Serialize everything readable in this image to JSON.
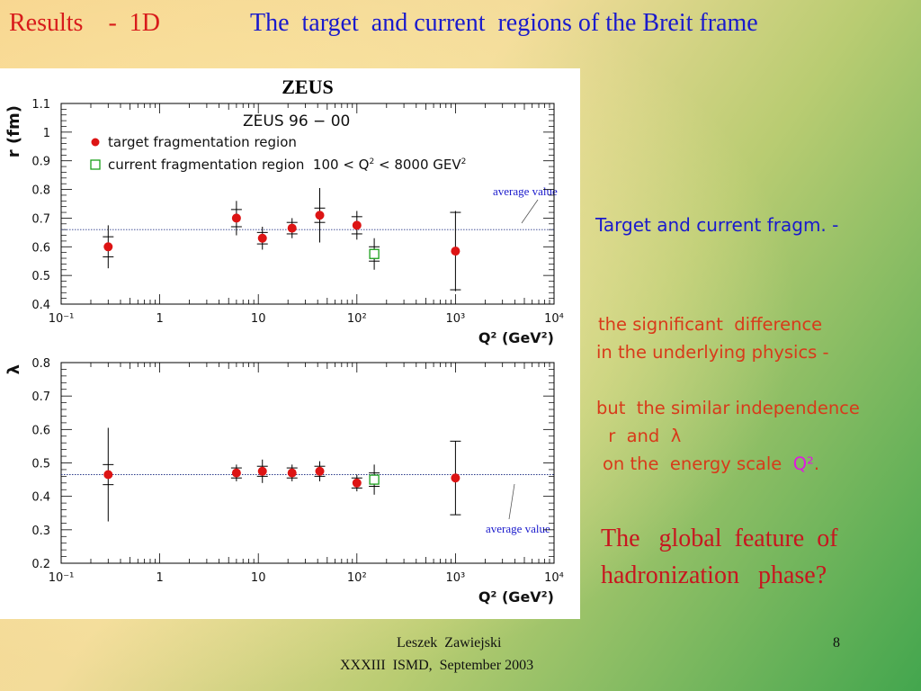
{
  "slide": {
    "title_left": "Results    -  1D",
    "title_right": "The  target  and current  regions of the Breit frame"
  },
  "figure": {
    "header": "ZEUS",
    "inner_label": "ZEUS 96 − 00",
    "legend_target": "target fragmentation region",
    "legend_current_pre": "current fragmentation region  100 < Q",
    "legend_current_post": " < 8000 GEV",
    "average_label": "average value"
  },
  "chart_data": [
    {
      "type": "scatter",
      "ylabel": "r (fm)",
      "xlabel": "Q² (GeV²)",
      "xscale": "log",
      "xlim": [
        0.1,
        10000
      ],
      "ylim": [
        0.4,
        1.1
      ],
      "yticks": [
        "0.4",
        "0.5",
        "0.6",
        "0.7",
        "0.8",
        "0.9",
        "1",
        "1.1"
      ],
      "xticks": [
        "10⁻¹",
        "1",
        "10",
        "10²",
        "10³",
        "10⁴"
      ],
      "average": 0.66,
      "series": [
        {
          "name": "target fragmentation region",
          "marker": "filled-circle",
          "color": "#dd1414",
          "points": [
            {
              "x": 0.3,
              "y": 0.6,
              "err": 0.075,
              "err_stat": 0.035
            },
            {
              "x": 6,
              "y": 0.7,
              "err": 0.06,
              "err_stat": 0.03
            },
            {
              "x": 11,
              "y": 0.63,
              "err": 0.04,
              "err_stat": 0.02
            },
            {
              "x": 22,
              "y": 0.665,
              "err": 0.035,
              "err_stat": 0.02
            },
            {
              "x": 42,
              "y": 0.71,
              "err": 0.095,
              "err_stat": 0.025
            },
            {
              "x": 100,
              "y": 0.675,
              "err": 0.05,
              "err_stat": 0.03
            },
            {
              "x": 1000,
              "y": 0.585,
              "err": 0.14,
              "err_stat": 0.135
            }
          ]
        },
        {
          "name": "current fragmentation region  100 < Q² < 8000 GEV²",
          "marker": "open-square",
          "color": "#1aa01a",
          "points": [
            {
              "x": 150,
              "y": 0.575,
              "err": 0.055,
              "err_stat": 0.025
            }
          ]
        }
      ]
    },
    {
      "type": "scatter",
      "ylabel": "λ",
      "xlabel": "Q² (GeV²)",
      "xscale": "log",
      "xlim": [
        0.1,
        10000
      ],
      "ylim": [
        0.2,
        0.8
      ],
      "yticks": [
        "0.2",
        "0.3",
        "0.4",
        "0.5",
        "0.6",
        "0.7",
        "0.8"
      ],
      "xticks": [
        "10⁻¹",
        "1",
        "10",
        "10²",
        "10³",
        "10⁴"
      ],
      "average": 0.465,
      "series": [
        {
          "name": "target fragmentation region",
          "marker": "filled-circle",
          "color": "#dd1414",
          "points": [
            {
              "x": 0.3,
              "y": 0.465,
              "err": 0.14,
              "err_stat": 0.03
            },
            {
              "x": 6,
              "y": 0.47,
              "err": 0.025,
              "err_stat": 0.015
            },
            {
              "x": 11,
              "y": 0.475,
              "err": 0.035,
              "err_stat": 0.015
            },
            {
              "x": 22,
              "y": 0.47,
              "err": 0.025,
              "err_stat": 0.015
            },
            {
              "x": 42,
              "y": 0.475,
              "err": 0.03,
              "err_stat": 0.015
            },
            {
              "x": 100,
              "y": 0.44,
              "err": 0.025,
              "err_stat": 0.015
            },
            {
              "x": 1000,
              "y": 0.455,
              "err": 0.11,
              "err_stat": 0.11
            }
          ]
        },
        {
          "name": "current fragmentation region  100 < Q² < 8000 GEV²",
          "marker": "open-square",
          "color": "#1aa01a",
          "points": [
            {
              "x": 150,
              "y": 0.45,
              "err": 0.045,
              "err_stat": 0.02
            }
          ]
        }
      ]
    }
  ],
  "side": {
    "title": "Target and current fragm. -",
    "diff_line1": "the significant  difference",
    "diff_line2": "in the underlying physics -",
    "sim_line1": "but  the similar independence",
    "sim_line2": " r  and  λ",
    "sim_line3_pre": "on the  energy scale  ",
    "sim_q2": "Q²",
    "sim_line3_post": ".",
    "feature_line1": "The   global  feature  of",
    "feature_line2": "hadronization   phase?"
  },
  "footer": {
    "author": "Leszek  Zawiejski",
    "conference": "XXXIII  ISMD,  September 2003",
    "page": "8"
  }
}
